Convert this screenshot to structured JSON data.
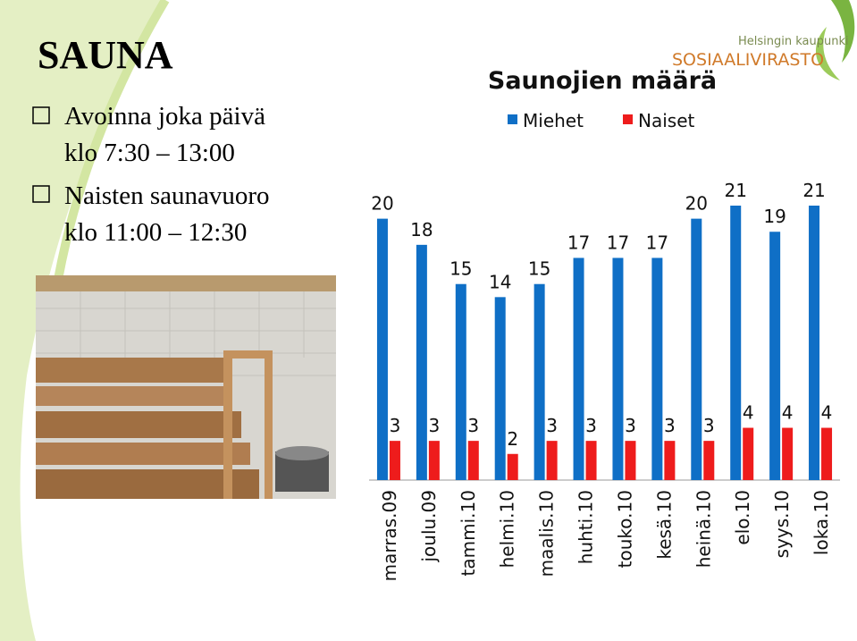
{
  "slide": {
    "title": "SAUNA",
    "bullets": [
      [
        "Avoinna joka päivä",
        "klo 7:30 – 13:00"
      ],
      [
        "Naisten saunavuoro",
        "klo 11:00 – 12:30"
      ]
    ]
  },
  "logo": {
    "line1": "Helsingin kaupunki",
    "line2": "SOSIAALIVIRASTO"
  },
  "chart_data": {
    "type": "bar",
    "title": "Saunojien määrä",
    "categories": [
      "marras.09",
      "joulu.09",
      "tammi.10",
      "helmi.10",
      "maalis.10",
      "huhti.10",
      "touko.10",
      "kesä.10",
      "heinä.10",
      "elo.10",
      "syys.10",
      "loka.10"
    ],
    "series": [
      {
        "name": "Miehet",
        "color": "#0f6fc6",
        "values": [
          20,
          18,
          15,
          14,
          15,
          17,
          17,
          17,
          20,
          21,
          19,
          21
        ]
      },
      {
        "name": "Naiset",
        "color": "#ee1c1c",
        "values": [
          3,
          3,
          3,
          2,
          3,
          3,
          3,
          3,
          3,
          4,
          4,
          4
        ]
      }
    ],
    "legend": "top"
  }
}
